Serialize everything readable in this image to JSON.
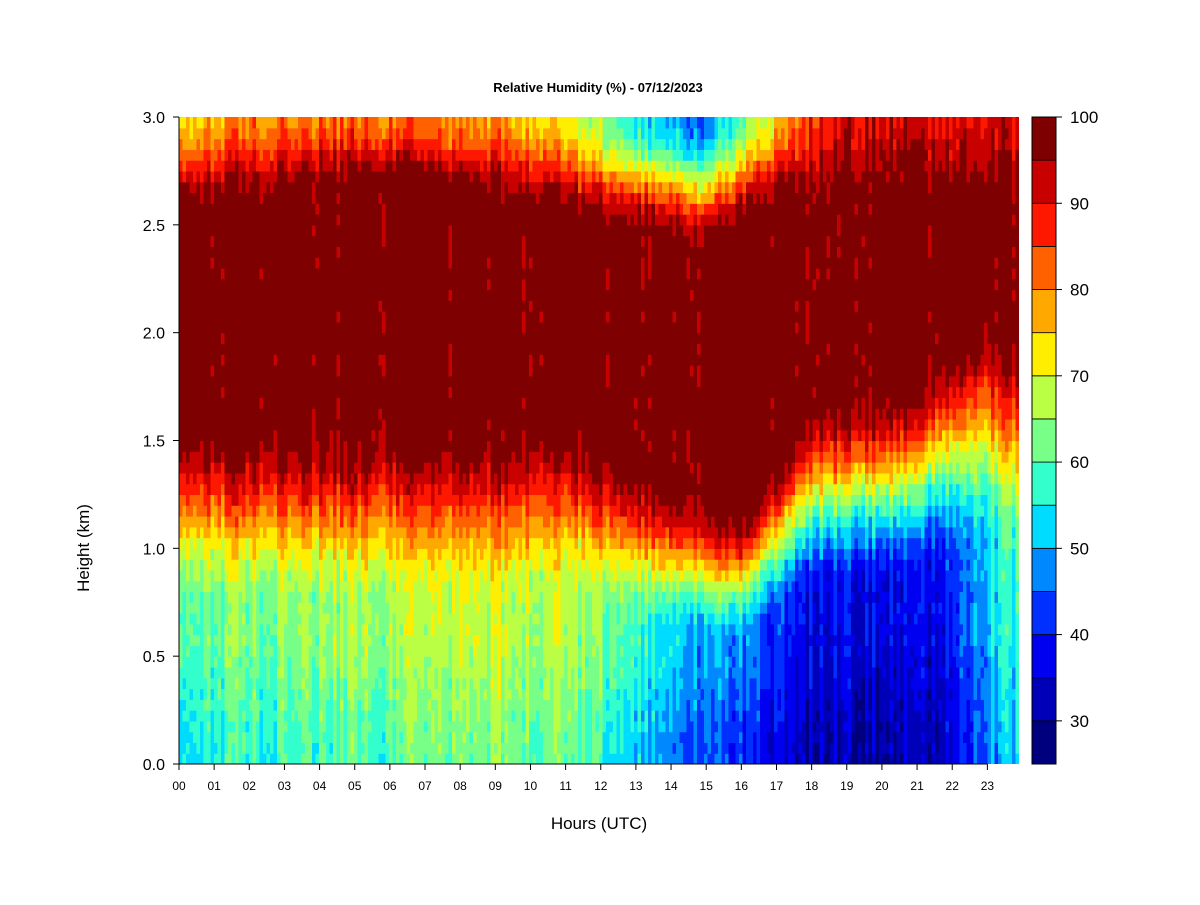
{
  "chart_data": {
    "type": "heatmap",
    "title": "Relative Humidity (%) - 07/12/2023",
    "xlabel": "Hours (UTC)",
    "ylabel": "Height (km)",
    "x_ticks": [
      "00",
      "01",
      "02",
      "03",
      "04",
      "05",
      "06",
      "07",
      "08",
      "09",
      "10",
      "11",
      "12",
      "13",
      "14",
      "15",
      "16",
      "17",
      "18",
      "19",
      "20",
      "21",
      "22",
      "23"
    ],
    "y_ticks": [
      "0.0",
      "0.5",
      "1.0",
      "1.5",
      "2.0",
      "2.5",
      "3.0"
    ],
    "xlim": [
      0,
      23.9
    ],
    "ylim": [
      0,
      3.0
    ],
    "colorbar": {
      "range": [
        25,
        100
      ],
      "labels": [
        "30",
        "40",
        "50",
        "60",
        "70",
        "80",
        "90",
        "100"
      ],
      "levels": [
        {
          "from": 25,
          "to": 30,
          "color": "#00007f"
        },
        {
          "from": 30,
          "to": 35,
          "color": "#0000b8"
        },
        {
          "from": 35,
          "to": 40,
          "color": "#0000f0"
        },
        {
          "from": 40,
          "to": 45,
          "color": "#0030ff"
        },
        {
          "from": 45,
          "to": 50,
          "color": "#0088ff"
        },
        {
          "from": 50,
          "to": 55,
          "color": "#00dcff"
        },
        {
          "from": 55,
          "to": 60,
          "color": "#33ffcc"
        },
        {
          "from": 60,
          "to": 65,
          "color": "#77ff88"
        },
        {
          "from": 65,
          "to": 70,
          "color": "#bbff44"
        },
        {
          "from": 70,
          "to": 75,
          "color": "#ffee00"
        },
        {
          "from": 75,
          "to": 80,
          "color": "#ffa800"
        },
        {
          "from": 80,
          "to": 85,
          "color": "#ff6000"
        },
        {
          "from": 85,
          "to": 90,
          "color": "#ff1800"
        },
        {
          "from": 90,
          "to": 95,
          "color": "#c80000"
        },
        {
          "from": 95,
          "to": 100,
          "color": "#7f0000"
        }
      ]
    },
    "approximate_profiles": {
      "description_hours": [
        0,
        2,
        4,
        6,
        8,
        10,
        11,
        12,
        13,
        14,
        15,
        16,
        17,
        18,
        19,
        20,
        21,
        22,
        23,
        23.9
      ],
      "saturated_layer_bottom_km": [
        1.6,
        1.6,
        1.6,
        1.6,
        1.6,
        1.6,
        1.7,
        1.5,
        1.4,
        1.3,
        1.25,
        1.2,
        1.45,
        1.7,
        1.75,
        1.75,
        1.85,
        2.0,
        2.15,
        2.05
      ],
      "saturated_layer_top_km": [
        2.55,
        2.55,
        2.65,
        2.7,
        2.6,
        2.55,
        2.5,
        2.45,
        2.45,
        2.4,
        2.35,
        2.45,
        2.55,
        2.6,
        2.6,
        2.6,
        2.6,
        2.6,
        2.55,
        2.5
      ],
      "near_surface_rh_percent": [
        55,
        57,
        59,
        60,
        63,
        62,
        60,
        57,
        53,
        48,
        44,
        40,
        35,
        33,
        32,
        31,
        31,
        35,
        47,
        52
      ],
      "top_3km_rh_percent": [
        75,
        80,
        82,
        82,
        80,
        78,
        70,
        65,
        55,
        52,
        45,
        60,
        75,
        88,
        92,
        93,
        92,
        90,
        92,
        90
      ]
    }
  }
}
